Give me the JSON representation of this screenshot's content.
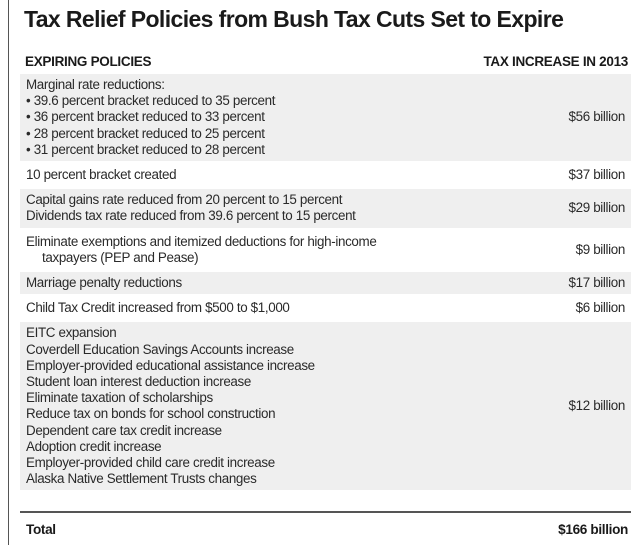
{
  "title": "Tax Relief Policies from Bush Tax Cuts Set to Expire",
  "headers": {
    "policies": "EXPIRING POLICIES",
    "increase": "TAX INCREASE IN 2013"
  },
  "rows": [
    {
      "lines": [
        "Marginal rate reductions:",
        "• 39.6 percent bracket reduced to 35 percent",
        "• 36 percent bracket reduced to 33 percent",
        "• 28 percent bracket reduced to 25 percent",
        "• 31 percent bracket reduced to 28 percent"
      ],
      "amount": "$56 billion"
    },
    {
      "lines": [
        "10 percent bracket created"
      ],
      "amount": "$37 billion"
    },
    {
      "lines": [
        "Capital gains rate reduced from 20 percent to 15 percent",
        "Dividends tax rate reduced from 39.6 percent to 15 percent"
      ],
      "amount": "$29 billion"
    },
    {
      "lines": [
        "Eliminate exemptions and itemized deductions for high-income",
        "taxpayers (PEP and Pease)"
      ],
      "amount": "$9 billion"
    },
    {
      "lines": [
        "Marriage penalty reductions"
      ],
      "amount": "$17 billion"
    },
    {
      "lines": [
        "Child Tax Credit increased from $500 to $1,000"
      ],
      "amount": "$6 billion"
    },
    {
      "lines": [
        "EITC expansion",
        "Coverdell Education Savings Accounts increase",
        "Employer-provided educational assistance increase",
        "Student loan interest deduction increase",
        "Eliminate taxation of scholarships",
        "Reduce tax on bonds for school construction",
        "Dependent care tax credit increase",
        "Adoption credit increase",
        "Employer-provided child care credit increase",
        "Alaska Native Settlement Trusts changes"
      ],
      "amount": "$12 billion"
    }
  ],
  "total": {
    "label": "Total",
    "amount": "$166 billion"
  },
  "colors": {
    "row_shade": "#efefef",
    "text": "#222222",
    "rule": "#555555"
  }
}
